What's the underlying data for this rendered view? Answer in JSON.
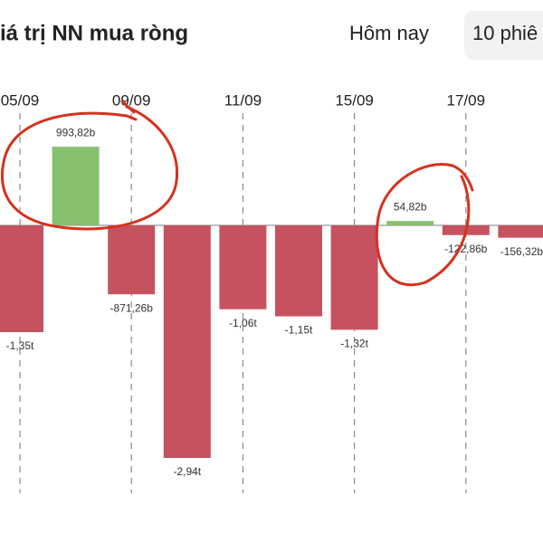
{
  "tabs": [
    "Hôm nay",
    "10 phiê"
  ],
  "chart_data": {
    "type": "bar",
    "title": "iá trị NN mua ròng",
    "categories": [
      "05/09",
      null,
      "09/09",
      null,
      "11/09",
      null,
      "15/09",
      null,
      "17/09",
      null
    ],
    "values": [
      -1350,
      993.82,
      -871.26,
      -2940,
      -1060,
      -1150,
      -1320,
      54.82,
      -122.86,
      -156.32
    ],
    "value_labels": [
      "-1,35t",
      "993,82b",
      "-871,26b",
      "-2,94t",
      "-1,06t",
      "-1,15t",
      "-1,32t",
      "54,82b",
      "-122,86b",
      "-156,32b"
    ],
    "positive_color": "#86c06f",
    "negative_color": "#c6525f"
  }
}
